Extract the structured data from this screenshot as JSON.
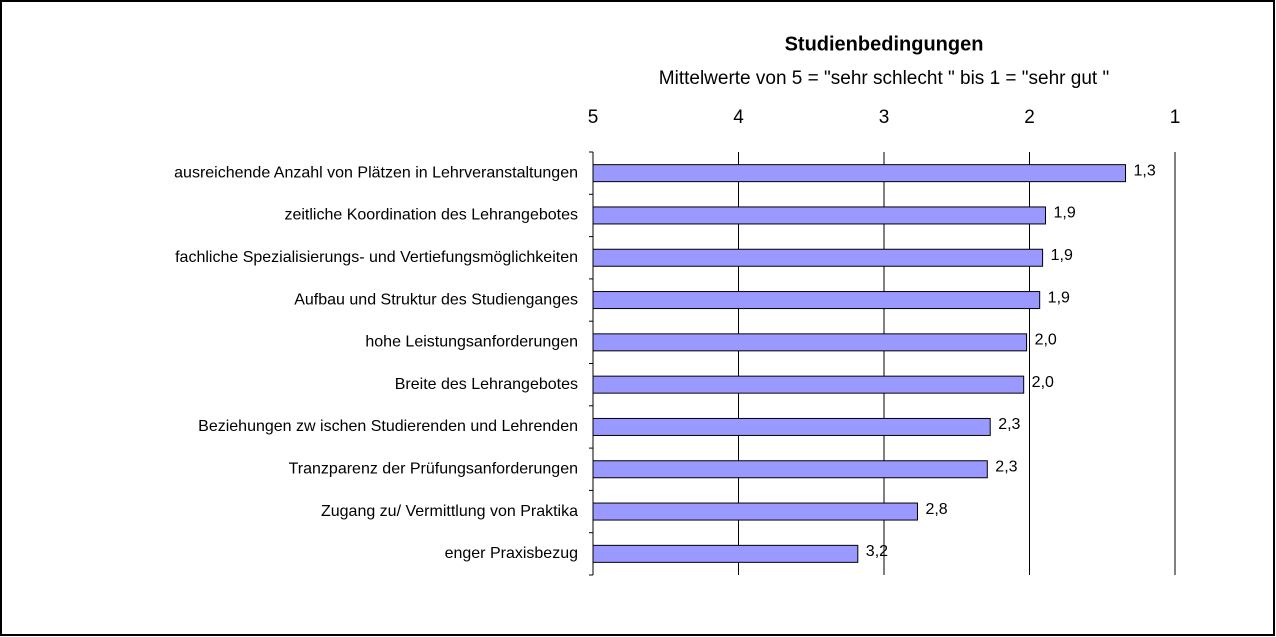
{
  "chart_data": {
    "type": "bar",
    "orientation": "horizontal",
    "title": "Studienbedingungen",
    "subtitle": "Mittelwerte von 5 = \"sehr schlecht \" bis 1 = \"sehr gut \"",
    "categories": [
      "ausreichende Anzahl von Plätzen in Lehrveranstaltungen",
      "zeitliche Koordination des Lehrangebotes",
      "fachliche Spezialisierungs- und Vertiefungsmöglichkeiten",
      "Aufbau und Struktur des Studienganges",
      "hohe Leistungsanforderungen",
      "Breite des Lehrangebotes",
      "Beziehungen zw ischen Studierenden und Lehrenden",
      "Tranzparenz der Prüfungsanforderungen",
      "Zugang zu/ Vermittlung von Praktika",
      "enger Praxisbezug"
    ],
    "values": [
      1.34,
      1.89,
      1.91,
      1.93,
      2.02,
      2.04,
      2.27,
      2.29,
      2.77,
      3.18
    ],
    "value_labels": [
      "1,3",
      "1,9",
      "1,9",
      "1,9",
      "2,0",
      "2,0",
      "2,3",
      "2,3",
      "2,8",
      "3,2"
    ],
    "color": "#9999ff",
    "xlim": [
      5,
      1
    ],
    "xticks": [
      5,
      4,
      3,
      2,
      1
    ],
    "grid": true
  }
}
